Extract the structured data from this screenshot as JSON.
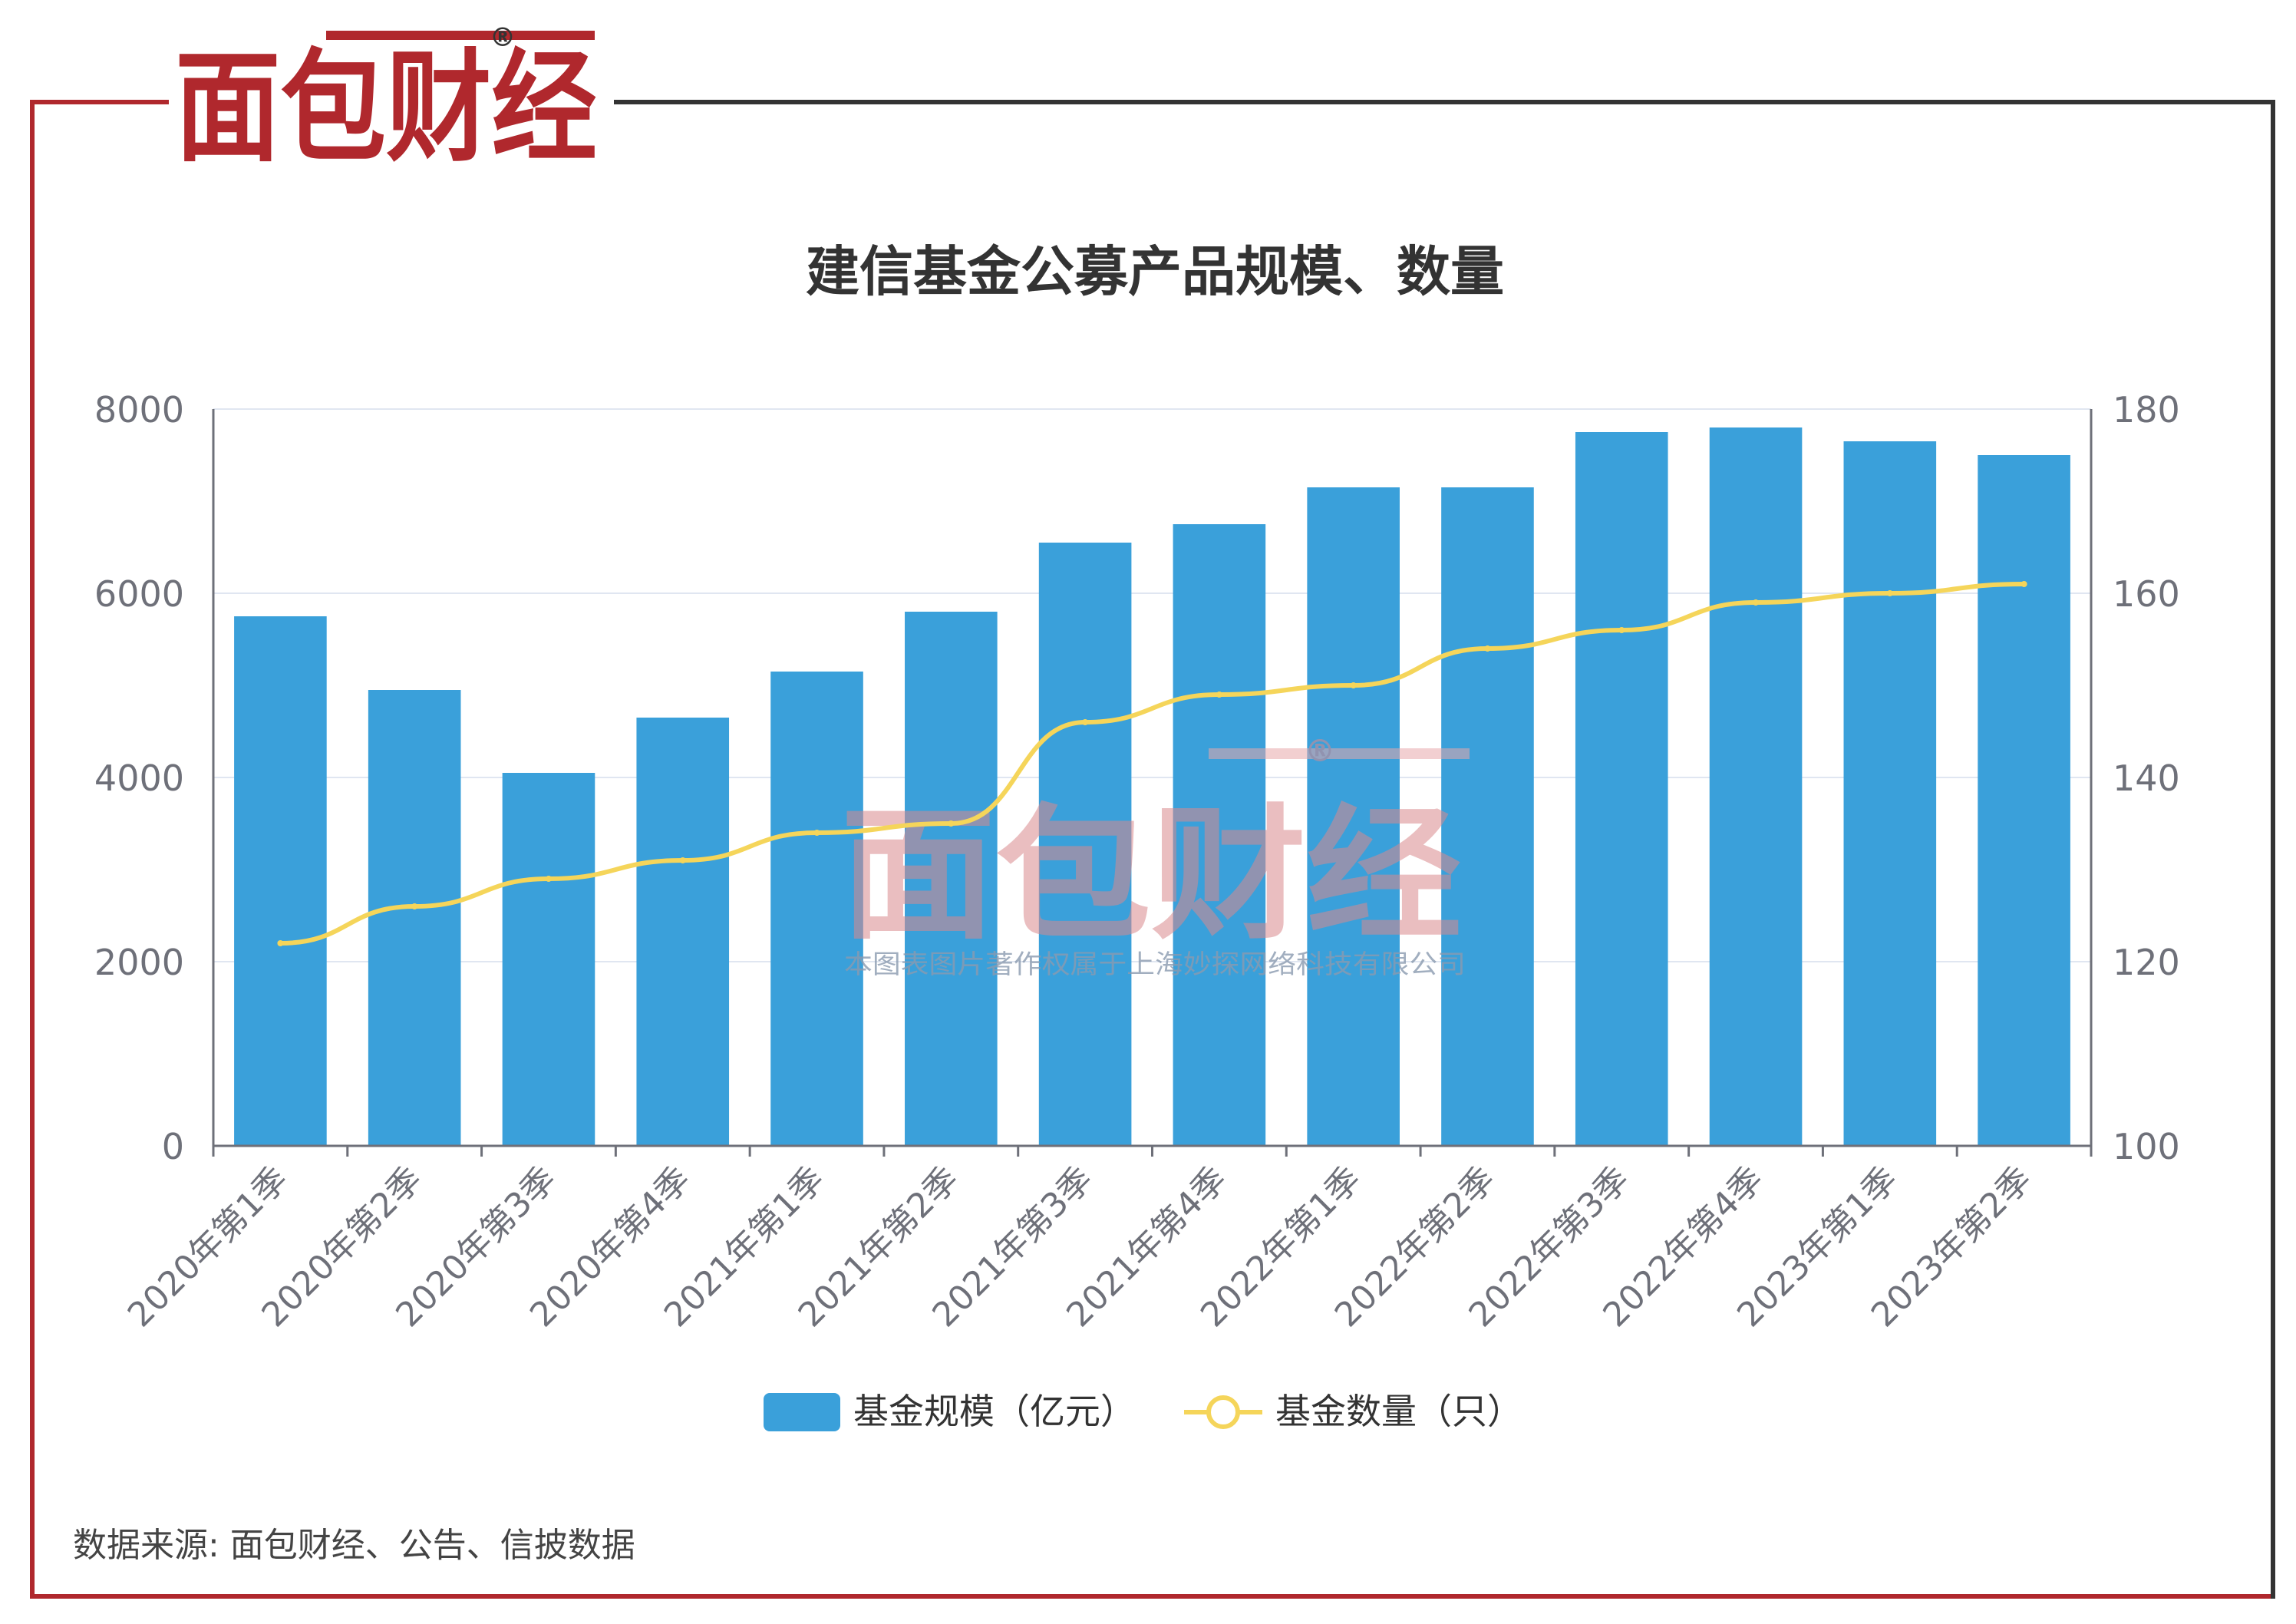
{
  "brand": {
    "logo_text": "面包财经",
    "registered_mark": "®",
    "accent_color": "#b0282d",
    "frame_color": "#333333"
  },
  "watermark": {
    "logo_text": "面包财经",
    "registered_mark": "®",
    "copyright": "本图表图片著作权属于上海妙探网络科技有限公司"
  },
  "source_note": "数据来源: 面包财经、公告、信披数据",
  "chart_data": {
    "type": "bar",
    "title": "建信基金公募产品规模、数量",
    "categories": [
      "2020年第1季",
      "2020年第2季",
      "2020年第3季",
      "2020年第4季",
      "2021年第1季",
      "2021年第2季",
      "2021年第3季",
      "2021年第4季",
      "2022年第1季",
      "2022年第2季",
      "2022年第3季",
      "2022年第4季",
      "2023年第1季",
      "2023年第2季"
    ],
    "series": [
      {
        "name": "基金规模（亿元）",
        "type": "bar",
        "axis": "left",
        "color": "#3aa0da",
        "values": [
          5750,
          4950,
          4050,
          4650,
          5150,
          5800,
          6550,
          6750,
          7150,
          7150,
          7750,
          7800,
          7650,
          7500
        ]
      },
      {
        "name": "基金数量（只）",
        "type": "line",
        "axis": "right",
        "color": "#f5d55a",
        "values": [
          122,
          126,
          129,
          131,
          134,
          135,
          146,
          149,
          150,
          154,
          156,
          159,
          160,
          161
        ]
      }
    ],
    "y_left": {
      "min": 0,
      "max": 8000,
      "ticks": [
        "0",
        "2000",
        "4000",
        "6000",
        "8000"
      ]
    },
    "y_right": {
      "min": 100,
      "max": 180,
      "ticks": [
        "100",
        "120",
        "140",
        "160",
        "180"
      ]
    },
    "grid": true,
    "legend_position": "bottom-center"
  }
}
